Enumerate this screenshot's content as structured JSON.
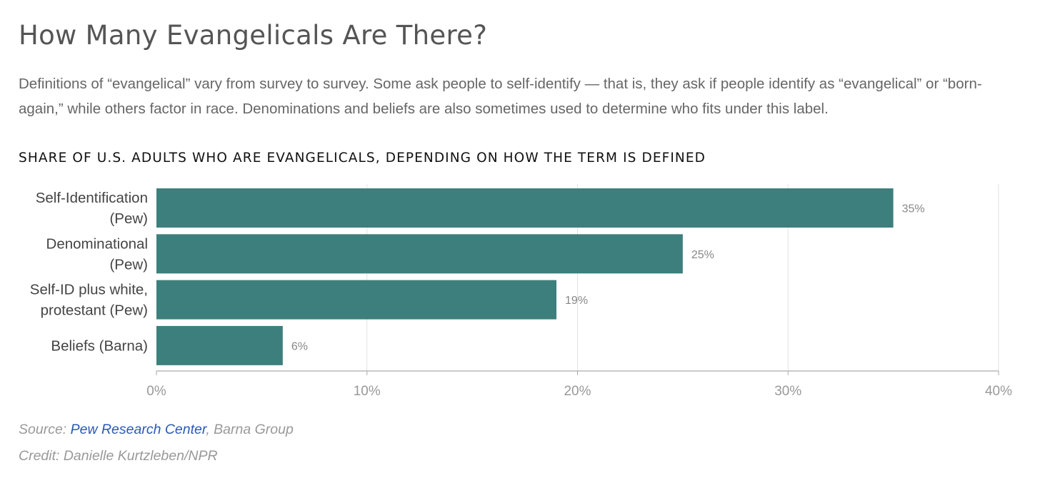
{
  "header": {
    "title": "How Many Evangelicals Are There?",
    "dek": "Definitions of “evangelical” vary from survey to survey. Some ask people to self-identify — that is, they ask if people identify as “evangelical” or “born-again,” while others factor in race. Denominations and beliefs are also sometimes used to determine who fits under this label."
  },
  "chart_data": {
    "type": "bar",
    "orientation": "horizontal",
    "title": "SHARE OF U.S. ADULTS WHO ARE EVANGELICALS, DEPENDING ON HOW THE TERM IS DEFINED",
    "categories": [
      [
        "Self-Identification",
        "(Pew)"
      ],
      [
        "Denominational",
        "(Pew)"
      ],
      [
        "Self-ID plus white,",
        "protestant (Pew)"
      ],
      [
        "Beliefs (Barna)"
      ]
    ],
    "values": [
      35,
      25,
      19,
      6
    ],
    "value_labels": [
      "35%",
      "25%",
      "19%",
      "6%"
    ],
    "xlim": [
      0,
      40
    ],
    "xticks": [
      0,
      10,
      20,
      30,
      40
    ],
    "xtick_labels": [
      "0%",
      "10%",
      "20%",
      "30%",
      "40%"
    ],
    "bar_color": "#3d7f7c",
    "grid": true
  },
  "footer": {
    "source_prefix": "Source: ",
    "source_link": "Pew Research Center",
    "source_suffix": ", Barna Group",
    "credit": "Credit: Danielle Kurtzleben/NPR"
  }
}
